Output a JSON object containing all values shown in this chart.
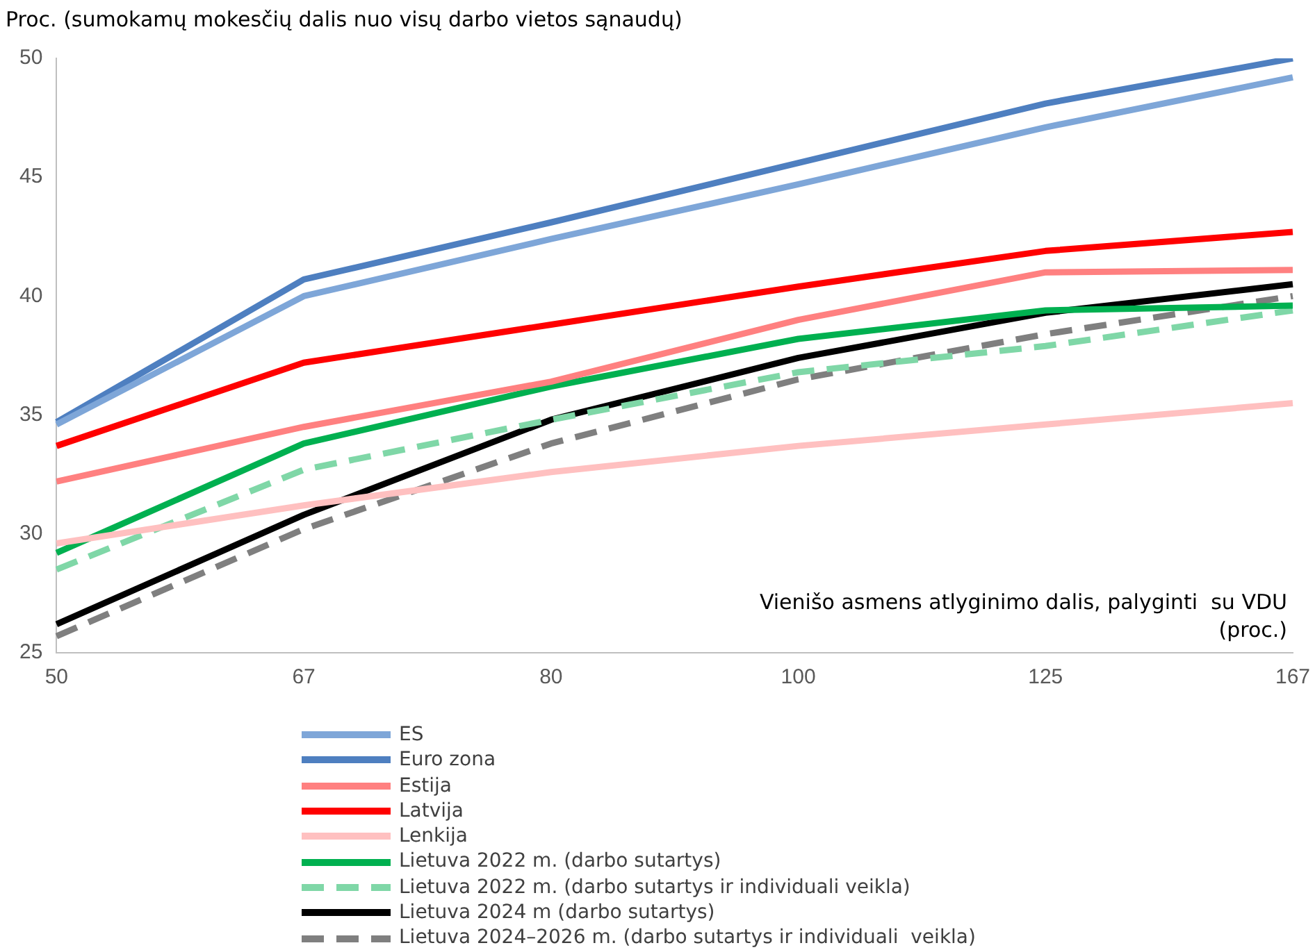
{
  "chart_data": {
    "type": "line",
    "title": "Proc. (sumokamų mokesčių dalis nuo visų darbo vietos sąnaudų)",
    "xlabel": "Vienišo asmens atlyginimo dalis, palyginti  su VDU\n(proc.)",
    "categories": [
      "50",
      "67",
      "80",
      "100",
      "125",
      "167"
    ],
    "ylim": [
      25,
      50
    ],
    "yticks": [
      25,
      30,
      35,
      40,
      45,
      50
    ],
    "grid": false,
    "legend": "bottom",
    "marker": "none",
    "series": [
      {
        "name": "ES",
        "color": "#7ea6d8",
        "values": [
          34.6,
          40.0,
          42.4,
          44.7,
          47.1,
          49.2
        ]
      },
      {
        "name": "Euro zona",
        "color": "#4e7fc0",
        "values": [
          34.7,
          40.7,
          43.1,
          45.6,
          48.1,
          50.0
        ]
      },
      {
        "name": "Estija",
        "color": "#ff8080",
        "values": [
          32.2,
          34.5,
          36.4,
          39.0,
          41.0,
          41.1
        ]
      },
      {
        "name": "Latvija",
        "color": "#ff0000",
        "values": [
          33.7,
          37.2,
          38.8,
          40.4,
          41.9,
          42.7
        ]
      },
      {
        "name": "Lenkija",
        "color": "#ffc0c0",
        "values": [
          29.6,
          31.2,
          32.6,
          33.7,
          34.6,
          35.5
        ]
      },
      {
        "name": "Lietuva 2022 m. (darbo sutartys)",
        "color": "#00b050",
        "values": [
          29.2,
          33.8,
          36.2,
          38.2,
          39.4,
          39.6
        ]
      },
      {
        "name": "Lietuva 2022 m. (darbo sutartys ir individuali veikla)",
        "color": "#7fd7a7",
        "line_style": "dashed",
        "values": [
          28.5,
          32.7,
          34.8,
          36.8,
          37.9,
          39.4
        ]
      },
      {
        "name": "Lietuva 2024 m (darbo sutartys)",
        "color": "#000000",
        "values": [
          26.2,
          30.8,
          34.8,
          37.4,
          39.3,
          40.5
        ]
      },
      {
        "name": "Lietuva 2024–2026 m. (darbo sutartys ir individuali  veikla)",
        "color": "#7f7f7f",
        "line_style": "dashed",
        "values": [
          25.7,
          30.2,
          33.8,
          36.5,
          38.4,
          40.0
        ]
      }
    ]
  }
}
